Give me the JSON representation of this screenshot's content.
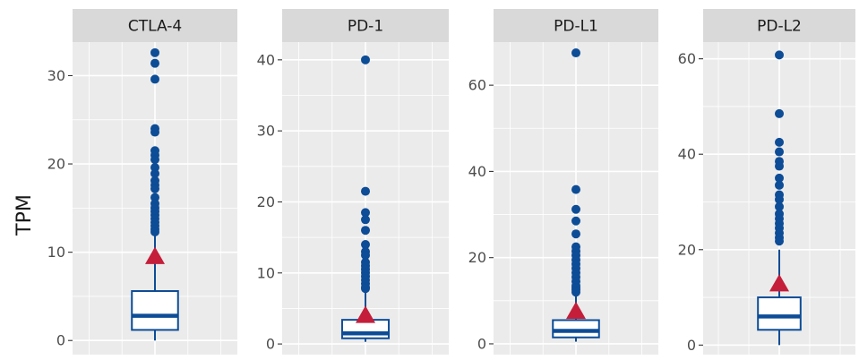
{
  "chart_data": {
    "type": "boxplot",
    "ylabel": "TPM",
    "grid": true,
    "facets": [
      {
        "name": "CTLA-4",
        "yticks": [
          0,
          10,
          20,
          30
        ],
        "ylim": [
          -1.6,
          33.8
        ],
        "box": {
          "min": 0.0,
          "q1": 1.2,
          "median": 2.8,
          "q3": 5.6,
          "max": 12.0
        },
        "mean": 9.5,
        "outliers": [
          32.6,
          31.4,
          29.6,
          24.0,
          23.6,
          21.5,
          21.0,
          20.5,
          19.6,
          18.9,
          18.1,
          17.6,
          17.2,
          16.2,
          15.5,
          15.0,
          14.6,
          14.2,
          13.8,
          13.4,
          13.0,
          12.6,
          12.3
        ]
      },
      {
        "name": "PD-1",
        "yticks": [
          0,
          10,
          20,
          30,
          40
        ],
        "ylim": [
          -1.5,
          42.5
        ],
        "box": {
          "min": 0.3,
          "q1": 0.8,
          "median": 1.5,
          "q3": 3.4,
          "max": 7.5
        },
        "mean": 4.0,
        "outliers": [
          40.0,
          21.5,
          18.5,
          17.5,
          16.0,
          14.0,
          13.0,
          12.5,
          11.5,
          11.0,
          10.5,
          10.0,
          9.5,
          9.0,
          8.5,
          8.0,
          7.8
        ]
      },
      {
        "name": "PD-L1",
        "yticks": [
          0,
          20,
          40,
          60
        ],
        "ylim": [
          -2.5,
          70.0
        ],
        "box": {
          "min": 0.5,
          "q1": 1.5,
          "median": 3.0,
          "q3": 5.5,
          "max": 11.5
        },
        "mean": 7.5,
        "outliers": [
          67.5,
          35.8,
          31.2,
          28.5,
          25.5,
          22.5,
          21.5,
          20.5,
          19.5,
          18.5,
          17.5,
          16.5,
          15.5,
          14.5,
          13.5,
          13.0,
          12.5,
          12.0
        ]
      },
      {
        "name": "PD-L2",
        "yticks": [
          0,
          20,
          40,
          60
        ],
        "ylim": [
          -2.0,
          63.5
        ],
        "box": {
          "min": 0.0,
          "q1": 3.2,
          "median": 6.0,
          "q3": 10.0,
          "max": 20.0
        },
        "mean": 12.8,
        "outliers": [
          60.8,
          48.5,
          42.5,
          40.5,
          38.5,
          37.5,
          35.0,
          33.5,
          31.5,
          30.5,
          29.0,
          27.5,
          26.5,
          25.5,
          24.5,
          23.5,
          22.5,
          21.8
        ]
      }
    ]
  },
  "colors": {
    "box": "#0d4c96",
    "outlier": "#0d4c96",
    "mean": "#c41e3a",
    "panel": "#ebebeb",
    "strip": "#d9d9d9",
    "grid": "#ffffff"
  }
}
